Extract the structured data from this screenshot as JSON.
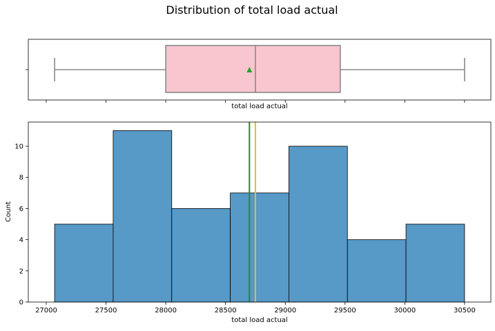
{
  "chart_data": [
    {
      "type": "box",
      "title": "Distribution of total load actual",
      "xlabel": "total load actual",
      "ylabel": "",
      "xlim": [
        26850,
        30720
      ],
      "box": {
        "whisker_low": 27070,
        "q1": 28000,
        "median": 28750,
        "q3": 29460,
        "whisker_high": 30500,
        "mean": 28700,
        "box_color": "#f9c6d0",
        "line_color": "#888888",
        "mean_marker_color": "#2ca02c"
      },
      "xticks": [
        27000,
        27500,
        28000,
        28500,
        29000,
        29500,
        30000,
        30500
      ],
      "show_xtick_labels": false
    },
    {
      "type": "histogram",
      "xlabel": "total load actual",
      "ylabel": "Count",
      "xlim": [
        26850,
        30720
      ],
      "ylim": [
        0,
        11.55
      ],
      "xticks": [
        27000,
        27500,
        28000,
        28500,
        29000,
        29500,
        30000,
        30500
      ],
      "yticks": [
        0,
        2,
        4,
        6,
        8,
        10
      ],
      "bin_edges": [
        27070,
        27560,
        28050,
        28540,
        29030,
        29520,
        30010,
        30500
      ],
      "counts": [
        5,
        11,
        6,
        7,
        10,
        4,
        5
      ],
      "bar_color": "#5799c7",
      "edge_color": "#000000",
      "mean_line": {
        "value": 28700,
        "color": "#228b22"
      },
      "median_line": {
        "value": 28750,
        "color": "#f2b822"
      }
    }
  ]
}
